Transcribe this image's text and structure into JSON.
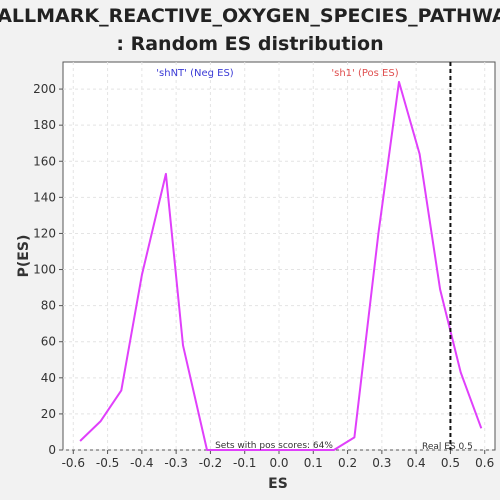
{
  "chart_data": {
    "type": "line",
    "title_lines": [
      "HALLMARK_REACTIVE_OXYGEN_SPECIES_PATHWAY",
      ": Random ES distribution"
    ],
    "xlabel": "ES",
    "ylabel": "P(ES)",
    "xlim": [
      -0.63,
      0.63
    ],
    "ylim": [
      0,
      215
    ],
    "xticks": [
      -0.6,
      -0.5,
      -0.4,
      -0.3,
      -0.2,
      -0.1,
      0.0,
      0.1,
      0.2,
      0.3,
      0.4,
      0.5,
      0.6
    ],
    "xtick_labels": [
      "-0.6",
      "-0.5",
      "-0.4",
      "-0.3",
      "-0.2",
      "-0.1",
      "0.0",
      "0.1",
      "0.2",
      "0.3",
      "0.4",
      "0.5",
      "0.6"
    ],
    "yticks": [
      0,
      20,
      40,
      60,
      80,
      100,
      120,
      140,
      160,
      180,
      200
    ],
    "ytick_labels": [
      "0",
      "20",
      "40",
      "60",
      "80",
      "100",
      "120",
      "140",
      "160",
      "180",
      "200"
    ],
    "grid": true,
    "series": [
      {
        "color": "#e040fb",
        "x": [
          -0.58,
          -0.52,
          -0.46,
          -0.4,
          -0.33,
          -0.28,
          -0.21,
          -0.15,
          -0.09,
          -0.03,
          0.03,
          0.09,
          0.16,
          0.22,
          0.29,
          0.35,
          0.41,
          0.47,
          0.53,
          0.59
        ],
        "y": [
          5,
          16,
          33,
          97,
          153,
          58,
          0,
          0,
          0,
          0,
          0,
          0,
          0,
          7,
          120,
          204,
          164,
          89,
          43,
          12
        ]
      }
    ],
    "real_es": 0.5,
    "real_es_label": "Real ES 0.5",
    "neg_label": "'shNT' (Neg ES)",
    "neg_label_color": "#3b3bd6",
    "pos_label": "'sh1' (Pos ES)",
    "pos_label_color": "#e05050",
    "pos_scores_text": "Sets with pos scores: 64%"
  }
}
